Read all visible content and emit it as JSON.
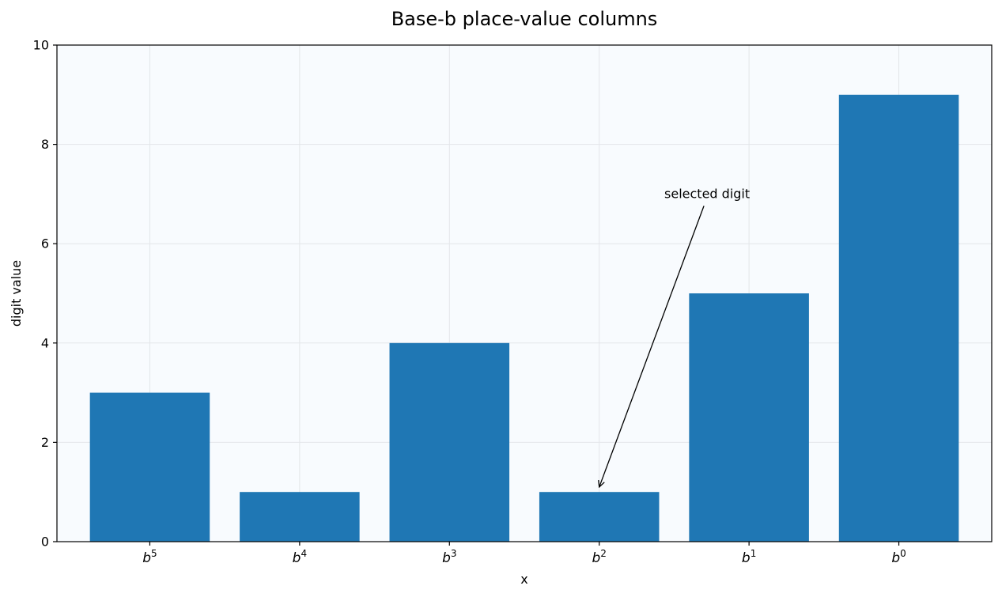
{
  "chart_data": {
    "type": "bar",
    "title": "Base-b place-value columns",
    "xlabel": "x",
    "ylabel": "digit value",
    "categories": [
      {
        "base": "b",
        "exp": "5"
      },
      {
        "base": "b",
        "exp": "4"
      },
      {
        "base": "b",
        "exp": "3"
      },
      {
        "base": "b",
        "exp": "2"
      },
      {
        "base": "b",
        "exp": "1"
      },
      {
        "base": "b",
        "exp": "0"
      }
    ],
    "values": [
      3,
      1,
      4,
      1,
      5,
      9
    ],
    "ylim": [
      0,
      10
    ],
    "yticks": [
      "0",
      "2",
      "4",
      "6",
      "8",
      "10"
    ],
    "grid": true,
    "colors": {
      "bar": "#1f77b4",
      "plot_background": "#f8fbfe",
      "grid": "#e3e6e9"
    },
    "annotation": {
      "text": "selected digit",
      "target_index": 3,
      "target_value": 1.1,
      "text_value": 7.0
    }
  }
}
